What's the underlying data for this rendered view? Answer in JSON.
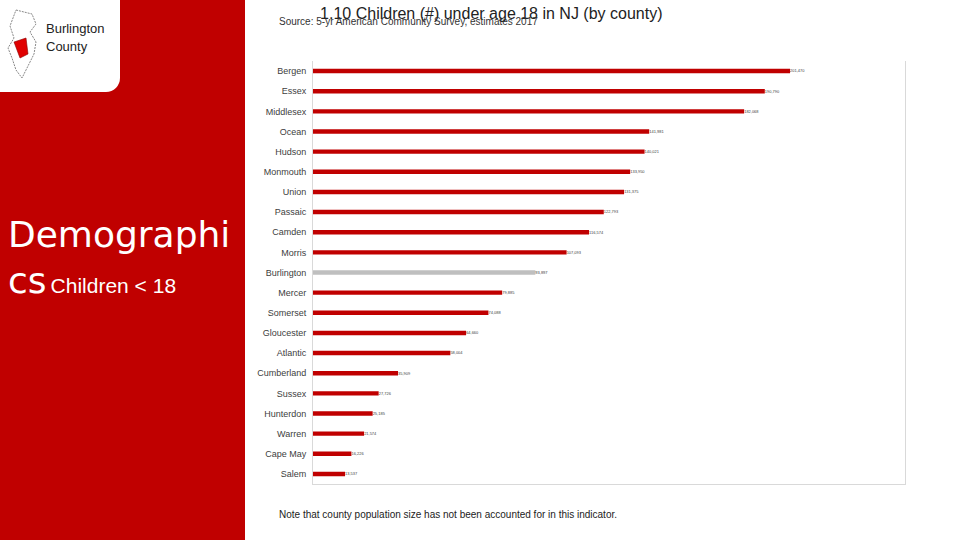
{
  "page": {
    "badge": "Burlington County",
    "section": "Demographics",
    "subsection": "Children < 18",
    "note": "Note that county population size has not been accounted for in this indicator."
  },
  "chart_data": {
    "type": "bar",
    "orientation": "horizontal",
    "title": "1.10 Children (#) under age 18 in NJ (by county)",
    "subtitle": "Source: 5-yr American Community Survey, estimates 2017",
    "categories": [
      "Bergen",
      "Essex",
      "Middlesex",
      "Ocean",
      "Hudson",
      "Monmouth",
      "Union",
      "Passaic",
      "Camden",
      "Morris",
      "Burlington",
      "Mercer",
      "Somerset",
      "Gloucester",
      "Atlantic",
      "Cumberland",
      "Sussex",
      "Hunterdon",
      "Warren",
      "Cape May",
      "Salem"
    ],
    "values": [
      201470,
      190790,
      182068,
      141981,
      140021,
      133950,
      131375,
      122793,
      116574,
      107093,
      93897,
      79885,
      74088,
      64660,
      58004,
      35909,
      27726,
      25185,
      21574,
      16226,
      13537
    ],
    "value_labels": [
      "201,470",
      "190,790",
      "182,068",
      "141,981",
      "140,021",
      "133,950",
      "131,375",
      "122,793",
      "116,574",
      "107,093",
      "93,897",
      "79,885",
      "74,088",
      "64,660",
      "58,004",
      "35,909",
      "27,726",
      "25,185",
      "21,574",
      "16,226",
      "13,537"
    ],
    "colors": [
      "#c00000",
      "#c00000",
      "#c00000",
      "#c00000",
      "#c00000",
      "#c00000",
      "#c00000",
      "#c00000",
      "#c00000",
      "#c00000",
      "#bfbfbf",
      "#c00000",
      "#c00000",
      "#c00000",
      "#c00000",
      "#c00000",
      "#c00000",
      "#c00000",
      "#c00000",
      "#c00000",
      "#c00000"
    ],
    "xlim": [
      0,
      250000
    ],
    "xticks": [],
    "data_labels": true,
    "tick_labels": "y"
  }
}
